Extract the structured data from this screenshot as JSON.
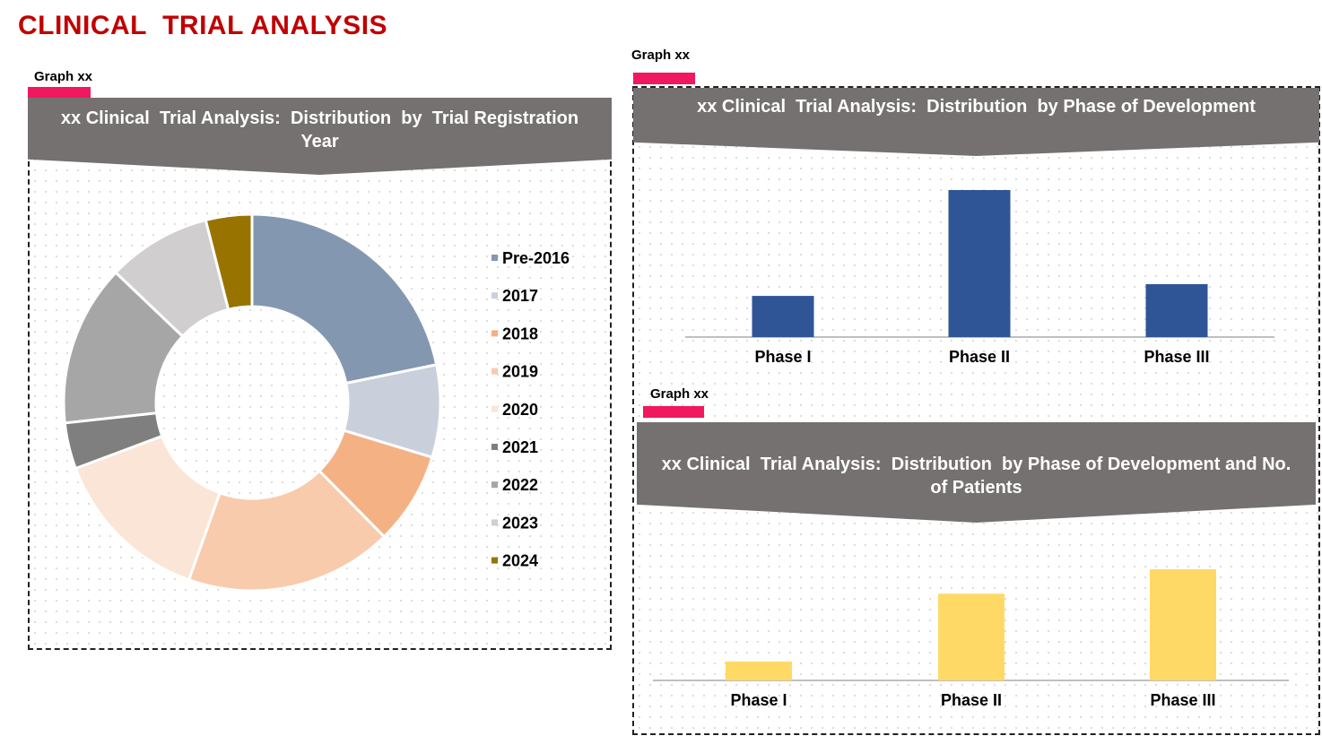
{
  "page": {
    "title": "CLINICAL  TRIAL ANALYSIS"
  },
  "colors": {
    "title": "#c00000",
    "tag_bar": "#f0185e",
    "banner": "#757170",
    "blue_bar": "#2f5597",
    "yellow_bar": "#ffd966"
  },
  "graphs": [
    {
      "tag": "Graph xx",
      "title": "xx Clinical  Trial Analysis:  Distribution  by  Trial Registration Year"
    },
    {
      "tag": "Graph xx",
      "title": "xx Clinical  Trial Analysis:  Distribution  by Phase of Development"
    },
    {
      "tag": "Graph xx",
      "title": "xx Clinical  Trial Analysis:  Distribution  by Phase of Development and No. of Patients"
    }
  ],
  "chart_data": [
    {
      "type": "pie",
      "donut": true,
      "legend_position": "right",
      "categories": [
        "Pre-2016",
        "2017",
        "2018",
        "2019",
        "2020",
        "2021",
        "2022",
        "2023",
        "2024"
      ],
      "values": [
        22,
        8,
        8,
        18,
        14,
        4,
        14,
        9,
        4
      ],
      "colors": [
        "#8497b0",
        "#c9d0dc",
        "#f4b183",
        "#f8cbad",
        "#fbe5d6",
        "#7f7f7f",
        "#a6a6a6",
        "#d0cece",
        "#997300"
      ]
    },
    {
      "type": "bar",
      "categories": [
        "Phase I",
        "Phase II",
        "Phase III"
      ],
      "values": [
        28,
        100,
        36
      ],
      "ylim": [
        0,
        100
      ],
      "color": "#2f5597"
    },
    {
      "type": "bar",
      "categories": [
        "Phase I",
        "Phase II",
        "Phase III"
      ],
      "values": [
        17,
        78,
        100
      ],
      "ylim": [
        0,
        100
      ],
      "color": "#ffd966"
    }
  ]
}
